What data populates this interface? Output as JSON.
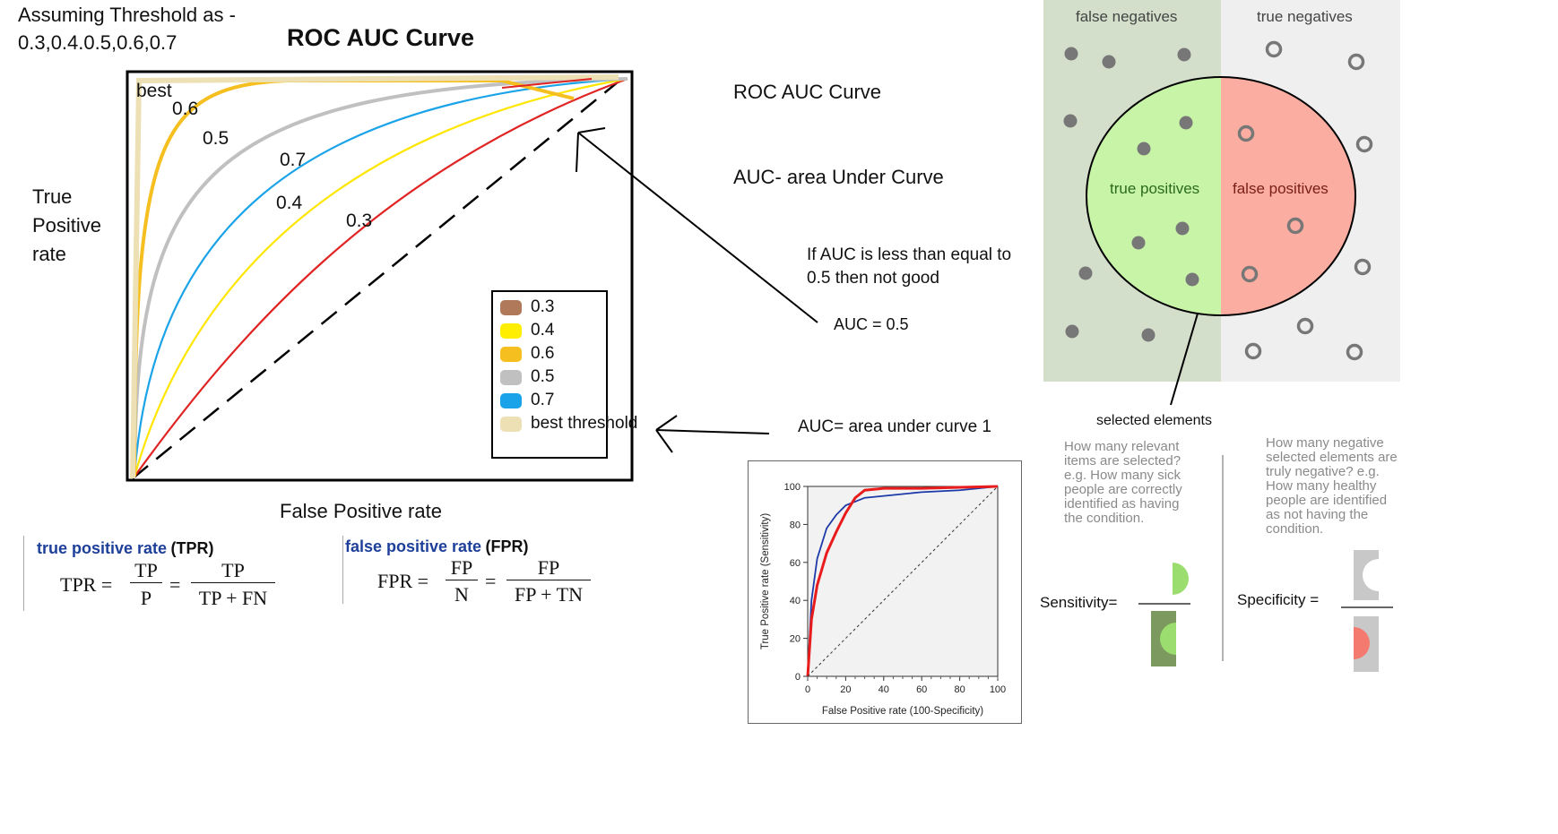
{
  "header": {
    "threshold_note_line1": "Assuming Threshold as -",
    "threshold_note_line2": "0.3,0.4.0.5,0.6,0.7",
    "main_title": "ROC AUC Curve"
  },
  "left_chart": {
    "y_label": [
      "True",
      "Positive",
      "rate"
    ],
    "x_label": "False Positive rate",
    "curve_labels": [
      "best",
      "0.6",
      "0.5",
      "0.7",
      "0.4",
      "0.3"
    ],
    "legend": [
      {
        "label": "0.3",
        "color": "#b07a5a"
      },
      {
        "label": "0.4",
        "color": "#ffee00"
      },
      {
        "label": "0.6",
        "color": "#f5bf1f"
      },
      {
        "label": "0.5",
        "color": "#c0c0c0"
      },
      {
        "label": "0.7",
        "color": "#1aa3e8"
      },
      {
        "label": "best threshold",
        "color": "#ece0b4"
      }
    ]
  },
  "notes": {
    "roc_auc": "ROC AUC Curve",
    "auc_def": "AUC- area Under Curve",
    "auc_rule_line1": "If AUC is less than equal to",
    "auc_rule_line2": "0.5 then not good",
    "auc_half": "AUC = 0.5",
    "auc_one": "AUC= area under curve 1"
  },
  "formulas": {
    "tpr_title": "true positive rate",
    "tpr_abbr": "(TPR)",
    "tpr_lhs": "TPR",
    "tpr_num1": "TP",
    "tpr_den1": "P",
    "tpr_num2": "TP",
    "tpr_den2": "TP + FN",
    "fpr_title": "false positive rate",
    "fpr_abbr": "(FPR)",
    "fpr_lhs": "FPR",
    "fpr_num1": "FP",
    "fpr_den1": "N",
    "fpr_num2": "FP",
    "fpr_den2": "FP + TN"
  },
  "small_chart": {
    "ylabel": "True Positive rate (Sensitivity)",
    "xlabel": "False Positive rate (100-Specificity)",
    "x_ticks": [
      "0",
      "20",
      "40",
      "60",
      "80",
      "100"
    ],
    "y_ticks": [
      "0",
      "20",
      "40",
      "60",
      "80",
      "100"
    ],
    "series_colors": [
      "#1e3aa8",
      "#e81c1c"
    ]
  },
  "chart_data": {
    "type": "line",
    "xlabel": "False Positive rate (100-Specificity)",
    "ylabel": "True Positive rate (Sensitivity)",
    "xlim": [
      0,
      100
    ],
    "ylim": [
      0,
      100
    ],
    "series": [
      {
        "color": "#1e3aa8",
        "x": [
          0,
          2,
          5,
          10,
          15,
          20,
          30,
          40,
          60,
          80,
          100
        ],
        "y": [
          0,
          40,
          62,
          78,
          85,
          90,
          94,
          95,
          97,
          98,
          100
        ]
      },
      {
        "color": "#e81c1c",
        "x": [
          0,
          2,
          5,
          10,
          15,
          20,
          25,
          30,
          40,
          60,
          80,
          100
        ],
        "y": [
          0,
          30,
          48,
          65,
          76,
          86,
          94,
          98,
          99,
          99,
          99.5,
          100
        ]
      },
      {
        "color": "#333333",
        "x": [
          0,
          100
        ],
        "y": [
          0,
          100
        ]
      }
    ]
  },
  "confusion": {
    "false_negatives": "false negatives",
    "true_negatives": "true negatives",
    "true_positives": "true positives",
    "false_positives": "false positives",
    "selected": "selected elements",
    "sens_question": "How many relevant items are selected? e.g. How many sick people are correctly identified as having the condition.",
    "spec_question": "How many negative selected elements are truly negative? e.g. How many healthy people are identified as not having the condition.",
    "sensitivity": "Sensitivity=",
    "specificity": "Specificity ="
  }
}
